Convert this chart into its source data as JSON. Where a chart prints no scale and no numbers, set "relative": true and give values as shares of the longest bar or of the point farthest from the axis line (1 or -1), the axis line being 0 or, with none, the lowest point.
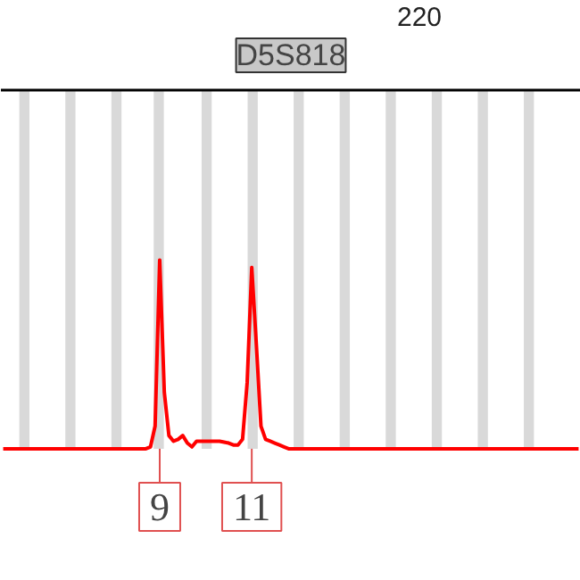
{
  "chart_data": {
    "type": "line",
    "title": "D5S818",
    "relative": true,
    "categories": [
      null,
      null,
      null,
      null,
      null,
      null,
      null,
      null,
      null,
      null,
      null,
      null,
      null,
      null,
      null,
      null,
      null,
      null,
      null,
      null,
      null,
      null,
      null,
      null,
      null,
      null,
      null,
      null,
      null,
      null,
      null,
      null,
      null,
      null,
      null,
      null,
      null,
      null,
      null,
      null,
      null,
      null,
      null,
      null,
      null,
      null,
      null,
      null,
      null,
      null,
      null,
      null,
      null,
      null,
      null,
      null,
      null,
      null,
      null,
      null,
      null,
      null,
      null,
      null,
      null,
      null,
      null,
      null,
      null,
      null,
      null,
      null,
      null,
      null,
      null,
      null,
      null,
      null,
      null,
      null,
      null,
      null,
      null,
      null,
      null,
      null,
      null,
      null,
      null,
      null,
      null,
      null,
      null,
      null,
      null,
      null,
      null,
      null,
      null,
      null,
      null,
      null,
      null,
      null,
      null,
      null,
      null,
      null,
      null,
      null,
      null,
      null,
      null,
      null,
      null,
      null,
      null,
      null,
      null,
      null,
      null,
      null,
      null,
      null,
      null,
      null
    ],
    "series": [
      {
        "color": "#ff0000",
        "values": [
          0,
          0,
          0,
          0,
          0,
          0,
          0,
          0,
          0,
          0,
          0,
          0,
          0,
          0,
          0,
          0,
          0,
          0,
          0,
          0,
          0,
          0,
          0,
          0,
          0,
          0,
          0,
          0,
          0,
          0,
          0,
          0,
          0.01,
          0.12,
          1.0,
          0.3,
          0.07,
          0.04,
          0.05,
          0.07,
          0.03,
          0.01,
          0.04,
          0.04,
          0.04,
          0.04,
          0.04,
          0.04,
          0.035,
          0.03,
          0.02,
          0.02,
          0.05,
          0.35,
          0.96,
          0.55,
          0.12,
          0.05,
          0.04,
          0.03,
          0.02,
          0.01,
          0,
          0,
          0,
          0,
          0,
          0,
          0,
          0,
          0,
          0,
          0,
          0,
          0,
          0,
          0,
          0,
          0,
          0,
          0,
          0,
          0,
          0,
          0,
          0,
          0,
          0,
          0,
          0,
          0,
          0,
          0,
          0,
          0,
          0,
          0,
          0,
          0,
          0,
          0,
          0,
          0,
          0,
          0,
          0,
          0,
          0,
          0,
          0,
          0,
          0,
          0,
          0,
          0,
          0,
          0,
          0,
          0,
          0,
          0,
          0,
          0,
          0,
          0,
          0
        ]
      }
    ],
    "annotations": [
      "220",
      "9",
      "11"
    ]
  }
}
